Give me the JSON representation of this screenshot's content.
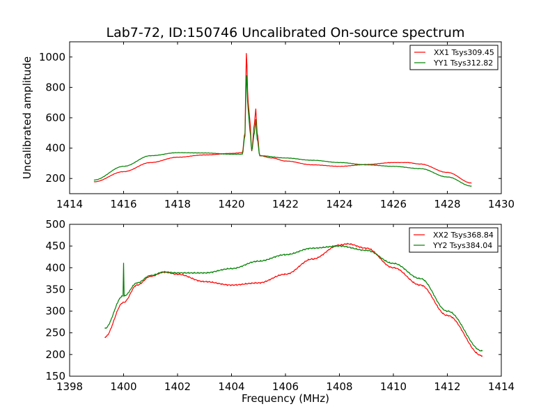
{
  "chart_data": [
    {
      "type": "line",
      "title": "Lab7-72, ID:150746 Uncalibrated On-source spectrum",
      "xlabel": "",
      "ylabel": "Uncalibrated amplitude",
      "xlim": [
        1414,
        1430
      ],
      "ylim": [
        100,
        1100
      ],
      "xticks": [
        1414,
        1416,
        1418,
        1420,
        1422,
        1424,
        1426,
        1428,
        1430
      ],
      "yticks": [
        200,
        400,
        600,
        800,
        1000
      ],
      "legend_position": "top-right",
      "series": [
        {
          "name": "XX1 Tsys309.45",
          "color": "#ff0000",
          "x": [
            1414.9,
            1416,
            1417,
            1418,
            1419,
            1420,
            1420.4,
            1420.5,
            1420.55,
            1420.62,
            1420.68,
            1420.75,
            1420.85,
            1420.9,
            1420.95,
            1421.05,
            1421.5,
            1422,
            1423,
            1424,
            1425,
            1426,
            1426.5,
            1427,
            1428,
            1428.9
          ],
          "y": [
            178,
            245,
            305,
            340,
            355,
            365,
            370,
            500,
            1025,
            700,
            580,
            380,
            560,
            660,
            500,
            350,
            335,
            315,
            290,
            280,
            292,
            305,
            305,
            295,
            240,
            170
          ]
        },
        {
          "name": "YY1 Tsys312.82",
          "color": "#008000",
          "x": [
            1414.9,
            1416,
            1417,
            1418,
            1419,
            1420,
            1420.4,
            1420.5,
            1420.55,
            1420.62,
            1420.68,
            1420.75,
            1420.85,
            1420.9,
            1420.95,
            1421.05,
            1422,
            1423,
            1424,
            1425,
            1426,
            1427,
            1428,
            1428.9
          ],
          "y": [
            190,
            280,
            350,
            370,
            368,
            360,
            360,
            480,
            880,
            650,
            520,
            385,
            500,
            590,
            460,
            350,
            335,
            320,
            305,
            290,
            280,
            265,
            210,
            150
          ]
        }
      ]
    },
    {
      "type": "line",
      "title": "",
      "xlabel": "Frequency (MHz)",
      "ylabel": "",
      "xlim": [
        1398,
        1414
      ],
      "ylim": [
        150,
        500
      ],
      "xticks": [
        1398,
        1400,
        1402,
        1404,
        1406,
        1408,
        1410,
        1412,
        1414
      ],
      "yticks": [
        150,
        200,
        250,
        300,
        350,
        400,
        450,
        500
      ],
      "legend_position": "top-right",
      "series": [
        {
          "name": "XX2 Tsys368.84",
          "color": "#ff0000",
          "x": [
            1399.3,
            1400,
            1400.5,
            1401,
            1401.5,
            1402,
            1403,
            1404,
            1405,
            1406,
            1407,
            1408,
            1408.3,
            1409,
            1410,
            1411,
            1412,
            1413.3
          ],
          "y": [
            240,
            320,
            360,
            380,
            390,
            385,
            368,
            360,
            365,
            385,
            420,
            452,
            455,
            445,
            400,
            360,
            290,
            197
          ]
        },
        {
          "name": "YY2 Tsys384.04",
          "color": "#008000",
          "x": [
            1399.3,
            1399.98,
            1400,
            1400.02,
            1400.5,
            1401,
            1401.5,
            1402,
            1403,
            1404,
            1405,
            1406,
            1407,
            1408,
            1409,
            1410,
            1411,
            1412,
            1413.3
          ],
          "y": [
            260,
            335,
            412,
            335,
            365,
            382,
            390,
            388,
            388,
            398,
            415,
            430,
            445,
            450,
            440,
            410,
            375,
            300,
            208
          ]
        }
      ]
    }
  ]
}
